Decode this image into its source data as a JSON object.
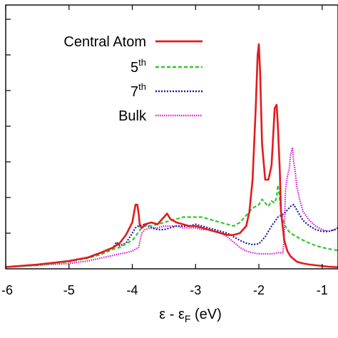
{
  "chart_data": {
    "type": "line",
    "title": "",
    "xlabel": {
      "epsilon": "ε",
      "separator": " - ",
      "epsilon_f": "ε",
      "subscript": "F",
      "unit": " (eV)"
    },
    "ylabel": "",
    "xlim": [
      -6.0,
      -0.75
    ],
    "ylim": [
      0,
      7.4
    ],
    "x_ticks": [
      -6,
      -5,
      -4,
      -3,
      -2,
      -1
    ],
    "x_tick_labels": [
      "-6",
      "-5",
      "-4",
      "-3",
      "-2",
      "-1"
    ],
    "y_ticks": [
      0,
      1,
      2,
      3,
      4,
      5,
      6,
      7
    ],
    "grid": false,
    "legend_position": "top-right",
    "series": [
      {
        "name": "Central Atom",
        "label_base": "Central Atom",
        "label_sup": "",
        "color": "#e41a1c",
        "dash": "solid",
        "x": [
          -6.0,
          -5.5,
          -5.0,
          -4.7,
          -4.5,
          -4.3,
          -4.2,
          -4.1,
          -4.0,
          -3.95,
          -3.92,
          -3.9,
          -3.88,
          -3.85,
          -3.82,
          -3.8,
          -3.7,
          -3.6,
          -3.5,
          -3.45,
          -3.4,
          -3.35,
          -3.3,
          -3.2,
          -3.1,
          -3.0,
          -2.9,
          -2.8,
          -2.7,
          -2.6,
          -2.5,
          -2.4,
          -2.3,
          -2.2,
          -2.15,
          -2.1,
          -2.05,
          -2.02,
          -2.0,
          -1.98,
          -1.95,
          -1.9,
          -1.85,
          -1.8,
          -1.75,
          -1.72,
          -1.7,
          -1.67,
          -1.65,
          -1.6,
          -1.55,
          -1.5,
          -1.4,
          -1.3,
          -1.2,
          -1.1,
          -1.0,
          -0.9,
          -0.8,
          -0.75
        ],
        "y": [
          0.05,
          0.12,
          0.22,
          0.32,
          0.45,
          0.6,
          0.72,
          0.95,
          1.3,
          1.8,
          1.8,
          1.55,
          1.2,
          1.15,
          1.2,
          1.25,
          1.3,
          1.25,
          1.45,
          1.55,
          1.4,
          1.35,
          1.3,
          1.25,
          1.2,
          1.2,
          1.15,
          1.1,
          1.05,
          1.0,
          0.95,
          0.95,
          1.0,
          1.2,
          1.6,
          2.5,
          4.5,
          6.0,
          6.3,
          5.5,
          3.5,
          2.5,
          2.5,
          2.9,
          4.5,
          4.6,
          4.0,
          2.8,
          1.6,
          0.8,
          0.5,
          0.35,
          0.2,
          0.15,
          0.12,
          0.1,
          0.08,
          0.06,
          0.05,
          0.05
        ]
      },
      {
        "name": "5th",
        "label_base": "5",
        "label_sup": "th",
        "color": "#2ec82e",
        "dash": "5,3",
        "x": [
          -6.0,
          -5.5,
          -5.0,
          -4.7,
          -4.5,
          -4.3,
          -4.2,
          -4.1,
          -4.0,
          -3.95,
          -3.9,
          -3.85,
          -3.8,
          -3.7,
          -3.6,
          -3.5,
          -3.4,
          -3.3,
          -3.2,
          -3.1,
          -3.0,
          -2.9,
          -2.8,
          -2.7,
          -2.6,
          -2.5,
          -2.4,
          -2.3,
          -2.2,
          -2.1,
          -2.0,
          -1.95,
          -1.9,
          -1.85,
          -1.8,
          -1.75,
          -1.72,
          -1.7,
          -1.68,
          -1.65,
          -1.6,
          -1.55,
          -1.5,
          -1.4,
          -1.3,
          -1.2,
          -1.1,
          -1.0,
          -0.9,
          -0.8,
          -0.75
        ],
        "y": [
          0.05,
          0.1,
          0.2,
          0.3,
          0.4,
          0.55,
          0.6,
          0.7,
          0.8,
          0.9,
          1.05,
          1.15,
          1.2,
          1.2,
          1.25,
          1.3,
          1.35,
          1.4,
          1.45,
          1.45,
          1.45,
          1.45,
          1.4,
          1.35,
          1.3,
          1.25,
          1.2,
          1.3,
          1.5,
          1.7,
          1.8,
          1.95,
          1.85,
          1.75,
          1.9,
          1.85,
          2.0,
          2.35,
          2.1,
          1.6,
          1.25,
          1.1,
          1.0,
          0.9,
          0.8,
          0.72,
          0.65,
          0.6,
          0.56,
          0.53,
          0.52
        ]
      },
      {
        "name": "7th",
        "label_base": "7",
        "label_sup": "th",
        "color": "#1a1aa6",
        "dash": "2,2",
        "x": [
          -6.0,
          -5.5,
          -5.0,
          -4.7,
          -4.5,
          -4.3,
          -4.25,
          -4.2,
          -4.1,
          -4.0,
          -3.95,
          -3.9,
          -3.8,
          -3.7,
          -3.6,
          -3.5,
          -3.4,
          -3.3,
          -3.2,
          -3.1,
          -3.0,
          -2.9,
          -2.8,
          -2.7,
          -2.6,
          -2.5,
          -2.4,
          -2.3,
          -2.2,
          -2.1,
          -2.0,
          -1.9,
          -1.8,
          -1.7,
          -1.6,
          -1.5,
          -1.45,
          -1.4,
          -1.3,
          -1.2,
          -1.1,
          -1.0,
          -0.9,
          -0.8,
          -0.75
        ],
        "y": [
          0.05,
          0.12,
          0.22,
          0.32,
          0.45,
          0.6,
          0.75,
          0.65,
          0.72,
          1.0,
          1.15,
          1.2,
          1.25,
          1.15,
          1.1,
          1.1,
          1.15,
          1.2,
          1.2,
          1.2,
          1.25,
          1.2,
          1.15,
          1.1,
          1.05,
          1.0,
          0.9,
          0.8,
          0.72,
          0.68,
          0.7,
          0.9,
          1.2,
          1.45,
          1.55,
          1.75,
          1.8,
          1.65,
          1.35,
          1.2,
          1.1,
          1.05,
          1.05,
          1.1,
          1.15
        ]
      },
      {
        "name": "Bulk",
        "label_base": "Bulk",
        "label_sup": "",
        "color": "#d418d4",
        "dash": "1.5,1.5",
        "x": [
          -6.0,
          -5.5,
          -5.0,
          -4.7,
          -4.5,
          -4.3,
          -4.2,
          -4.1,
          -4.0,
          -3.9,
          -3.85,
          -3.8,
          -3.7,
          -3.6,
          -3.5,
          -3.4,
          -3.3,
          -3.2,
          -3.1,
          -3.0,
          -2.9,
          -2.8,
          -2.7,
          -2.6,
          -2.5,
          -2.4,
          -2.3,
          -2.2,
          -2.1,
          -2.0,
          -1.9,
          -1.8,
          -1.7,
          -1.62,
          -1.6,
          -1.58,
          -1.55,
          -1.52,
          -1.5,
          -1.47,
          -1.45,
          -1.43,
          -1.4,
          -1.35,
          -1.3,
          -1.2,
          -1.1,
          -1.0,
          -0.9,
          -0.8,
          -0.75
        ],
        "y": [
          0.05,
          0.1,
          0.15,
          0.22,
          0.3,
          0.38,
          0.42,
          0.45,
          0.5,
          0.6,
          1.0,
          1.1,
          1.15,
          1.15,
          1.2,
          1.2,
          1.2,
          1.15,
          1.15,
          1.15,
          1.1,
          1.1,
          1.05,
          1.0,
          0.9,
          0.75,
          0.6,
          0.5,
          0.45,
          0.42,
          0.42,
          0.42,
          0.45,
          0.45,
          0.9,
          2.2,
          2.6,
          2.8,
          3.2,
          3.4,
          3.0,
          2.8,
          2.3,
          1.9,
          1.6,
          1.35,
          1.2,
          1.1,
          1.05,
          1.1,
          1.15
        ]
      }
    ]
  }
}
